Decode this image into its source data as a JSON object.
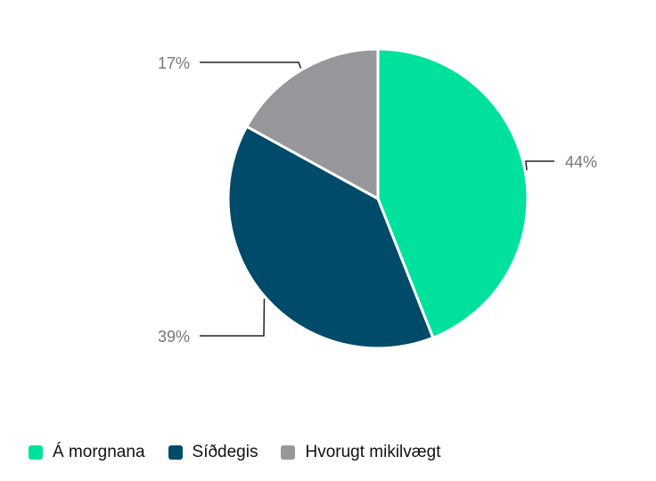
{
  "chart_data": {
    "type": "pie",
    "categories": [
      "Á morgnana",
      "Síðdegis",
      "Hvorugt mikilvægt"
    ],
    "values": [
      44,
      39,
      17
    ],
    "labels": [
      "44%",
      "39%",
      "17%"
    ],
    "colors": [
      "#00E19E",
      "#004A6A",
      "#97979B"
    ],
    "title": "",
    "legend_position": "bottom-left"
  }
}
